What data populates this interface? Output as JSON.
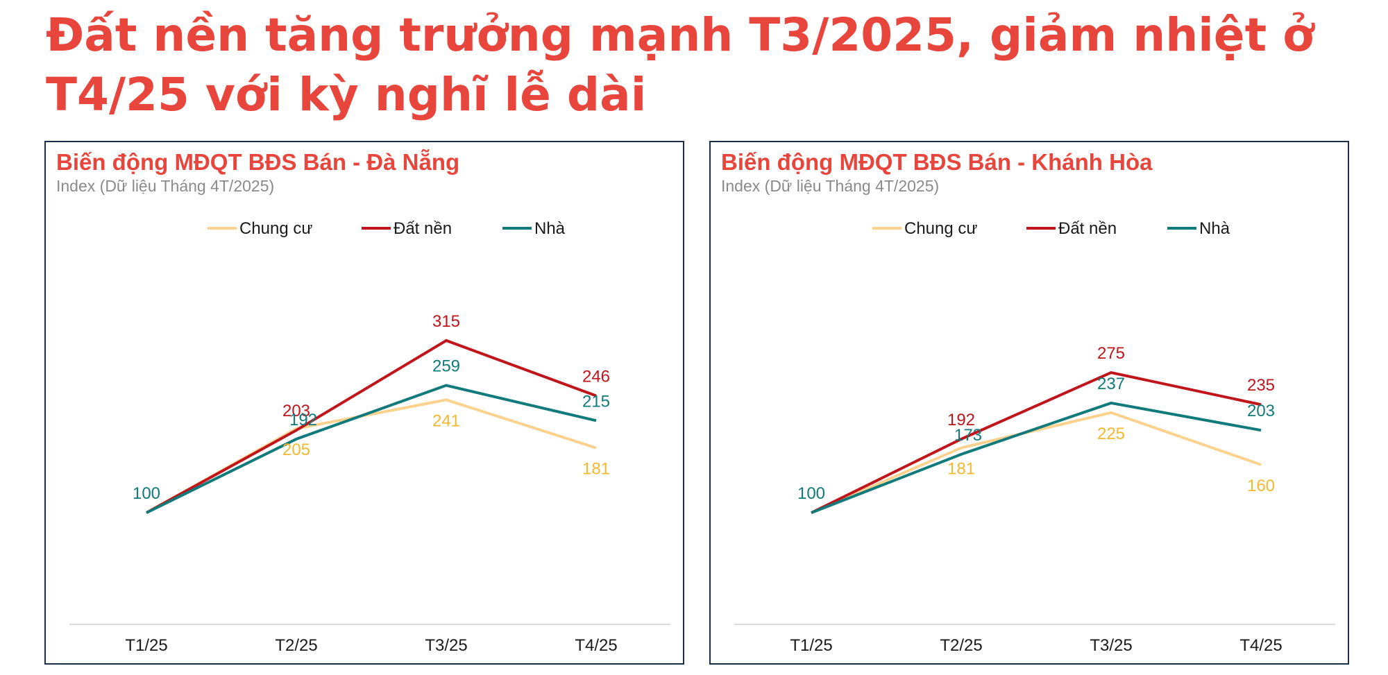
{
  "headline": "Đất nền tăng trưởng mạnh T3/2025, giảm nhiệt ở T4/25 với kỳ nghĩ lễ dài",
  "colors": {
    "accent": "#e8453c",
    "chung_cu": "#fcd28e",
    "chung_cu_label": "#f5b82e",
    "dat_nen": "#c0151b",
    "nha": "#117a7b",
    "border": "#1b2e45"
  },
  "chart_data": [
    {
      "type": "line",
      "title": "Biến động MĐQT BĐS Bán - Đà Nẵng",
      "subtitle": "Index (Dữ liệu Tháng 4T/2025)",
      "categories": [
        "T1/25",
        "T2/25",
        "T3/25",
        "T4/25"
      ],
      "series": [
        {
          "name": "Chung cư",
          "values": [
            100,
            205,
            241,
            181
          ]
        },
        {
          "name": "Đất nền",
          "values": [
            100,
            203,
            315,
            246
          ]
        },
        {
          "name": "Nhà",
          "values": [
            100,
            192,
            259,
            215
          ]
        }
      ],
      "legend": "top-center",
      "grid": false
    },
    {
      "type": "line",
      "title": "Biến động MĐQT BĐS Bán - Khánh Hòa",
      "subtitle": "Index (Dữ liệu Tháng 4T/2025)",
      "categories": [
        "T1/25",
        "T2/25",
        "T3/25",
        "T4/25"
      ],
      "series": [
        {
          "name": "Chung cư",
          "values": [
            100,
            181,
            225,
            160
          ]
        },
        {
          "name": "Đất nền",
          "values": [
            100,
            192,
            275,
            235
          ]
        },
        {
          "name": "Nhà",
          "values": [
            100,
            173,
            237,
            203
          ]
        }
      ],
      "legend": "top-center",
      "grid": false
    }
  ]
}
